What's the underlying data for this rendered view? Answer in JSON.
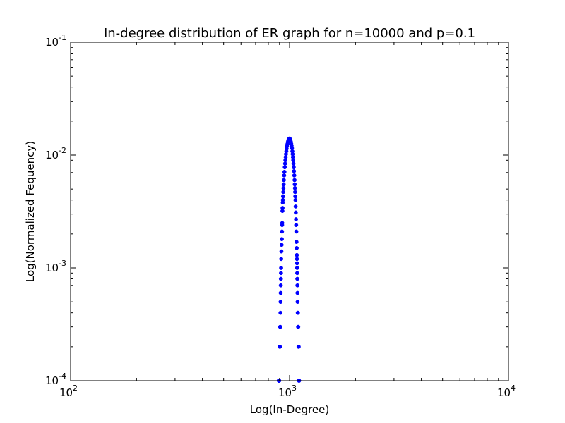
{
  "chart_data": {
    "type": "scatter",
    "title": "In-degree distribution of ER graph for n=10000 and p=0.1",
    "xlabel": "Log(In-Degree)",
    "ylabel": "Log(Normalized Fequency)",
    "x_scale": "log",
    "y_scale": "log",
    "xlim": [
      100,
      10000
    ],
    "ylim": [
      0.0001,
      0.1
    ],
    "x_ticks": [
      {
        "value": 100,
        "base": "10",
        "exp": "2"
      },
      {
        "value": 1000,
        "base": "10",
        "exp": "3"
      },
      {
        "value": 10000,
        "base": "10",
        "exp": "4"
      }
    ],
    "y_ticks": [
      {
        "value": 0.0001,
        "base": "10",
        "exp": "-4"
      },
      {
        "value": 0.001,
        "base": "10",
        "exp": "-3"
      },
      {
        "value": 0.01,
        "base": "10",
        "exp": "-2"
      },
      {
        "value": 0.1,
        "base": "10",
        "exp": "-1"
      }
    ],
    "grid": false,
    "marker_color": "#0000ff",
    "series": [
      {
        "points": [
          [
            893,
            0.0001
          ],
          [
            894,
            0.0001
          ],
          [
            895,
            0.0001
          ],
          [
            896,
            0.0001
          ],
          [
            897,
            0.0001
          ],
          [
            902,
            0.0002
          ],
          [
            904,
            0.0002
          ],
          [
            906,
            0.0003
          ],
          [
            907,
            0.0003
          ],
          [
            909,
            0.0004
          ],
          [
            910,
            0.0005
          ],
          [
            911,
            0.0006
          ],
          [
            912,
            0.0007
          ],
          [
            913,
            0.0008
          ],
          [
            914,
            0.0009
          ],
          [
            915,
            0.001
          ],
          [
            916,
            0.0012
          ],
          [
            918,
            0.0014
          ],
          [
            920,
            0.0016
          ],
          [
            922,
            0.0018
          ],
          [
            924,
            0.0021
          ],
          [
            925,
            0.0024
          ],
          [
            926,
            0.0025
          ],
          [
            928,
            0.0032
          ],
          [
            929,
            0.0034
          ],
          [
            931,
            0.0038
          ],
          [
            932,
            0.004
          ],
          [
            934,
            0.0043
          ],
          [
            936,
            0.0047
          ],
          [
            938,
            0.0051
          ],
          [
            940,
            0.0055
          ],
          [
            942,
            0.006
          ],
          [
            945,
            0.0066
          ],
          [
            948,
            0.0071
          ],
          [
            951,
            0.0078
          ],
          [
            954,
            0.0084
          ],
          [
            957,
            0.009
          ],
          [
            960,
            0.0096
          ],
          [
            963,
            0.0102
          ],
          [
            967,
            0.0108
          ],
          [
            970,
            0.0114
          ],
          [
            974,
            0.012
          ],
          [
            978,
            0.0125
          ],
          [
            982,
            0.013
          ],
          [
            986,
            0.0134
          ],
          [
            990,
            0.0137
          ],
          [
            994,
            0.0139
          ],
          [
            998,
            0.014
          ],
          [
            1002,
            0.014
          ],
          [
            1006,
            0.0138
          ],
          [
            1010,
            0.0135
          ],
          [
            1014,
            0.0131
          ],
          [
            1018,
            0.0126
          ],
          [
            1022,
            0.0121
          ],
          [
            1026,
            0.0115
          ],
          [
            1030,
            0.0108
          ],
          [
            1033,
            0.0102
          ],
          [
            1036,
            0.0096
          ],
          [
            1039,
            0.009
          ],
          [
            1042,
            0.0084
          ],
          [
            1045,
            0.0078
          ],
          [
            1048,
            0.0072
          ],
          [
            1051,
            0.0066
          ],
          [
            1054,
            0.006
          ],
          [
            1056,
            0.0055
          ],
          [
            1058,
            0.0051
          ],
          [
            1060,
            0.0047
          ],
          [
            1062,
            0.0043
          ],
          [
            1064,
            0.004
          ],
          [
            1066,
            0.0035
          ],
          [
            1068,
            0.0031
          ],
          [
            1070,
            0.0027
          ],
          [
            1072,
            0.0024
          ],
          [
            1074,
            0.0021
          ],
          [
            1076,
            0.0017
          ],
          [
            1078,
            0.0015
          ],
          [
            1080,
            0.0013
          ],
          [
            1081,
            0.0012
          ],
          [
            1082,
            0.0011
          ],
          [
            1083,
            0.001
          ],
          [
            1084,
            0.0009
          ],
          [
            1085,
            0.0008
          ],
          [
            1086,
            0.0007
          ],
          [
            1087,
            0.0006
          ],
          [
            1088,
            0.0005
          ],
          [
            1090,
            0.0004
          ],
          [
            1092,
            0.0004
          ],
          [
            1094,
            0.0003
          ],
          [
            1096,
            0.0003
          ],
          [
            1099,
            0.0002
          ],
          [
            1101,
            0.0002
          ],
          [
            1104,
            0.0001
          ],
          [
            1105,
            0.0001
          ],
          [
            1106,
            0.0001
          ]
        ]
      }
    ]
  }
}
